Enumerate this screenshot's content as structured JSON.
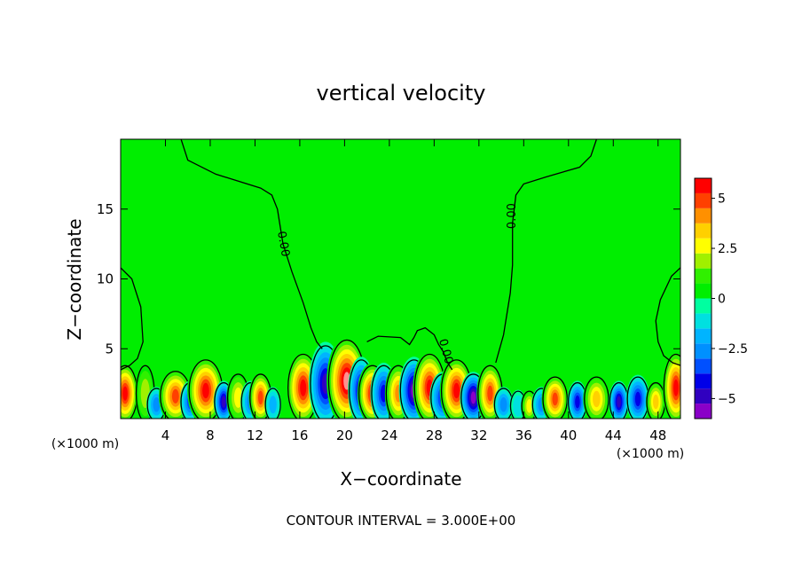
{
  "chart_data": {
    "type": "heatmap",
    "title": "vertical velocity",
    "xlabel": "X−coordinate",
    "ylabel": "Z−coordinate",
    "x_unit_left": "(×1000 m)",
    "x_unit_right": "(×1000 m)",
    "footer": "CONTOUR INTERVAL = 3.000E+00",
    "xlim": [
      0,
      50
    ],
    "ylim": [
      0,
      20
    ],
    "x_ticks": [
      4,
      8,
      12,
      16,
      20,
      24,
      28,
      32,
      36,
      40,
      44,
      48
    ],
    "x_tick_labels": [
      "4",
      "8",
      "12",
      "16",
      "20",
      "24",
      "28",
      "32",
      "36",
      "40",
      "44",
      "48"
    ],
    "y_ticks": [
      5,
      10,
      15
    ],
    "y_tick_labels": [
      "5",
      "10",
      "15"
    ],
    "colorbar": {
      "range": [
        -6,
        6
      ],
      "levels": [
        -6,
        -5.25,
        -4.5,
        -3.75,
        -3,
        -2.25,
        -1.5,
        -0.75,
        0,
        0.75,
        1.5,
        2.25,
        3,
        3.75,
        4.5,
        5.25,
        6
      ],
      "colors": [
        "#8a00c8",
        "#3000c0",
        "#0000e8",
        "#0050ff",
        "#0090ff",
        "#00b4ff",
        "#00e0e0",
        "#00ffa0",
        "#00ee00",
        "#30f000",
        "#a0f000",
        "#ffff00",
        "#ffd000",
        "#ff9000",
        "#ff4000",
        "#ff0000",
        "#ff9090"
      ],
      "tick_values": [
        5,
        2.5,
        0,
        -2.5,
        -5
      ],
      "tick_labels": [
        "5",
        "2.5",
        "0",
        "−2.5",
        "−5"
      ]
    },
    "contour_labels": [
      {
        "text": "0.00",
        "x": 14.5,
        "z": 12.5,
        "angle": 80
      },
      {
        "text": "0.00",
        "x": 35.0,
        "z": 14.5,
        "angle": -90
      },
      {
        "text": "0.00",
        "x": 29.0,
        "z": 4.8,
        "angle": 75
      }
    ],
    "contours_zero": [
      [
        [
          5.4,
          20
        ],
        [
          6.0,
          18.5
        ],
        [
          8.5,
          17.5
        ],
        [
          12.5,
          16.5
        ],
        [
          13.5,
          16.0
        ],
        [
          14.0,
          15.0
        ],
        [
          14.5,
          12.5
        ],
        [
          15.3,
          10.5
        ],
        [
          16.3,
          8.3
        ],
        [
          17.0,
          6.5
        ],
        [
          17.5,
          5.5
        ],
        [
          18.0,
          5.0
        ]
      ],
      [
        [
          22.0,
          5.5
        ],
        [
          23.0,
          5.9
        ],
        [
          25.0,
          5.8
        ],
        [
          25.8,
          5.3
        ],
        [
          26.2,
          5.8
        ],
        [
          26.5,
          6.3
        ],
        [
          27.2,
          6.5
        ],
        [
          28.0,
          6.0
        ],
        [
          28.4,
          5.3
        ],
        [
          28.8,
          4.8
        ],
        [
          29.2,
          4.0
        ],
        [
          29.6,
          3.5
        ]
      ],
      [
        [
          33.5,
          4.0
        ],
        [
          34.2,
          6.0
        ],
        [
          34.8,
          9.0
        ],
        [
          35.0,
          11.0
        ],
        [
          35.0,
          14.0
        ],
        [
          35.3,
          16.0
        ],
        [
          36.0,
          16.8
        ],
        [
          38.0,
          17.3
        ],
        [
          41.0,
          18.0
        ],
        [
          42.0,
          18.8
        ],
        [
          42.5,
          20
        ]
      ],
      [
        [
          0.0,
          10.8
        ],
        [
          1.0,
          10.0
        ],
        [
          1.8,
          8.0
        ],
        [
          2.0,
          5.5
        ],
        [
          1.5,
          4.3
        ],
        [
          0.8,
          3.8
        ],
        [
          0.0,
          3.5
        ]
      ],
      [
        [
          50.0,
          10.8
        ],
        [
          49.2,
          10.2
        ],
        [
          48.2,
          8.5
        ],
        [
          47.8,
          7.0
        ],
        [
          48.0,
          5.5
        ],
        [
          48.5,
          4.5
        ],
        [
          49.3,
          4.0
        ],
        [
          50.0,
          3.8
        ]
      ]
    ],
    "cells": [
      {
        "x": 0.4,
        "z": 1.8,
        "w": 0.8,
        "v": 5.5
      },
      {
        "x": 2.2,
        "z": 1.8,
        "w": 0.6,
        "v": 1.5
      },
      {
        "x": 3.2,
        "z": 1.0,
        "w": 0.6,
        "v": -2.5
      },
      {
        "x": 4.9,
        "z": 1.6,
        "w": 1.0,
        "v": 5.0
      },
      {
        "x": 6.2,
        "z": 1.2,
        "w": 0.6,
        "v": -3.5
      },
      {
        "x": 7.6,
        "z": 2.0,
        "w": 1.1,
        "v": 5.5
      },
      {
        "x": 9.2,
        "z": 1.2,
        "w": 0.6,
        "v": -5.0
      },
      {
        "x": 10.5,
        "z": 1.5,
        "w": 0.7,
        "v": 2.5
      },
      {
        "x": 11.6,
        "z": 1.2,
        "w": 0.6,
        "v": -3.0
      },
      {
        "x": 12.5,
        "z": 1.5,
        "w": 0.7,
        "v": 4.5
      },
      {
        "x": 13.6,
        "z": 1.0,
        "w": 0.5,
        "v": -2.0
      },
      {
        "x": 16.3,
        "z": 2.2,
        "w": 1.0,
        "v": 5.5
      },
      {
        "x": 18.3,
        "z": 2.5,
        "w": 1.0,
        "v": -5.0
      },
      {
        "x": 20.2,
        "z": 2.7,
        "w": 1.2,
        "v": 6.0
      },
      {
        "x": 21.5,
        "z": 2.0,
        "w": 0.8,
        "v": -5.0
      },
      {
        "x": 22.5,
        "z": 1.8,
        "w": 0.9,
        "v": 5.5
      },
      {
        "x": 23.5,
        "z": 1.8,
        "w": 0.8,
        "v": -4.5
      },
      {
        "x": 24.8,
        "z": 1.8,
        "w": 0.8,
        "v": 4.0
      },
      {
        "x": 26.2,
        "z": 2.0,
        "w": 0.9,
        "v": -5.5
      },
      {
        "x": 27.6,
        "z": 2.2,
        "w": 1.0,
        "v": 5.5
      },
      {
        "x": 28.8,
        "z": 1.5,
        "w": 0.8,
        "v": -4.5
      },
      {
        "x": 30.0,
        "z": 2.0,
        "w": 1.0,
        "v": 5.5
      },
      {
        "x": 31.5,
        "z": 1.5,
        "w": 0.8,
        "v": -6.0
      },
      {
        "x": 33.0,
        "z": 1.8,
        "w": 0.8,
        "v": 4.5
      },
      {
        "x": 34.2,
        "z": 1.0,
        "w": 0.6,
        "v": -3.0
      },
      {
        "x": 35.5,
        "z": 0.9,
        "w": 0.5,
        "v": -1.5
      },
      {
        "x": 36.5,
        "z": 0.9,
        "w": 0.5,
        "v": 2.5
      },
      {
        "x": 37.6,
        "z": 1.0,
        "w": 0.6,
        "v": -3.0
      },
      {
        "x": 38.8,
        "z": 1.4,
        "w": 0.8,
        "v": 5.0
      },
      {
        "x": 40.8,
        "z": 1.2,
        "w": 0.6,
        "v": -4.5
      },
      {
        "x": 42.5,
        "z": 1.4,
        "w": 0.8,
        "v": 3.5
      },
      {
        "x": 44.5,
        "z": 1.2,
        "w": 0.6,
        "v": -5.0
      },
      {
        "x": 46.2,
        "z": 1.4,
        "w": 0.7,
        "v": -4.5
      },
      {
        "x": 47.8,
        "z": 1.2,
        "w": 0.6,
        "v": 3.0
      },
      {
        "x": 49.6,
        "z": 2.2,
        "w": 0.8,
        "v": 5.5
      }
    ]
  }
}
